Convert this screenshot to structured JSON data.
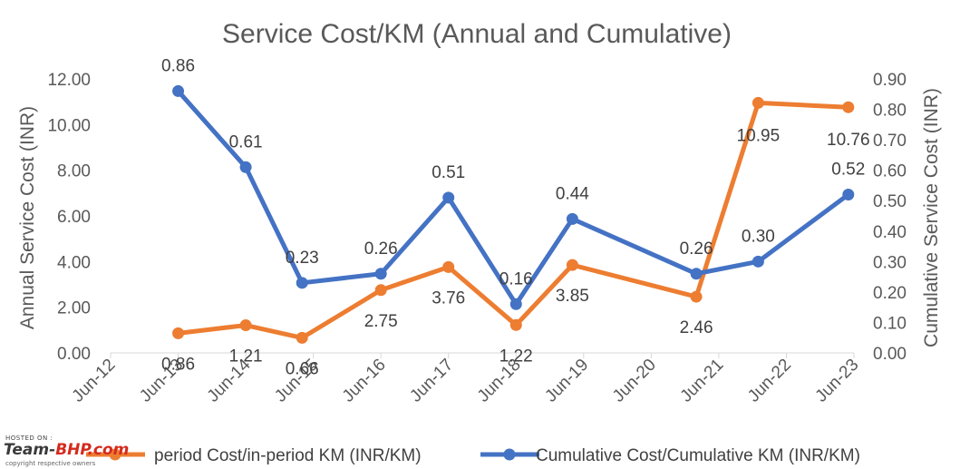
{
  "chart_data": {
    "type": "line",
    "title": "Service Cost/KM (Annual and Cumulative)",
    "x_tick_labels": [
      "Jun-12",
      "Jun-13",
      "Jun-14",
      "Jun-15",
      "Jun-16",
      "Jun-17",
      "Jun-18",
      "Jun-19",
      "Jun-20",
      "Jun-21",
      "Jun-22",
      "Jun-23"
    ],
    "y_left": {
      "label": "Annual Service Cost (INR)",
      "ticks": [
        "0.00",
        "2.00",
        "4.00",
        "6.00",
        "8.00",
        "10.00",
        "12.00"
      ],
      "range": [
        0,
        12
      ]
    },
    "y_right": {
      "label": "Cumulative Service Cost (INR)",
      "ticks": [
        "0.00",
        "0.10",
        "0.20",
        "0.30",
        "0.40",
        "0.50",
        "0.60",
        "0.70",
        "0.80",
        "0.90"
      ],
      "range": [
        0,
        0.9
      ]
    },
    "series": [
      {
        "name": "In-period Cost/in-period KM (INR/KM)",
        "legend_visible": "period Cost/in-period KM (INR/KM)",
        "axis": "left",
        "color": "#ED7D31",
        "x": [
          "2013-06",
          "2014-06",
          "2015-04",
          "2016-06",
          "2017-06",
          "2018-06",
          "2019-04",
          "2021-02",
          "2022-01",
          "2023-05"
        ],
        "values": [
          0.86,
          1.21,
          0.66,
          2.75,
          3.76,
          1.22,
          3.85,
          2.46,
          10.95,
          10.76
        ],
        "labels": [
          "0.86",
          "1.21",
          "0.66",
          "2.75",
          "3.76",
          "1.22",
          "3.85",
          "2.46",
          "10.95",
          "10.76"
        ]
      },
      {
        "name": "Cumulative Cost/Cumulative KM (INR/KM)",
        "axis": "right",
        "color": "#4472C4",
        "x": [
          "2013-06",
          "2014-06",
          "2015-04",
          "2016-06",
          "2017-06",
          "2018-06",
          "2019-04",
          "2021-02",
          "2022-01",
          "2023-05"
        ],
        "values": [
          0.86,
          0.61,
          0.23,
          0.26,
          0.51,
          0.16,
          0.44,
          0.26,
          0.3,
          0.52
        ],
        "labels": [
          "0.86",
          "0.61",
          "0.23",
          "0.26",
          "0.51",
          "0.16",
          "0.44",
          "0.26",
          "0.30",
          "0.52"
        ]
      }
    ],
    "grid": false,
    "legend_position": "bottom"
  },
  "watermark": {
    "hosted": "HOSTED ON :",
    "brand_prefix": "Team-",
    "brand_main": "BHP.com",
    "sub": "copyright respective owners"
  }
}
